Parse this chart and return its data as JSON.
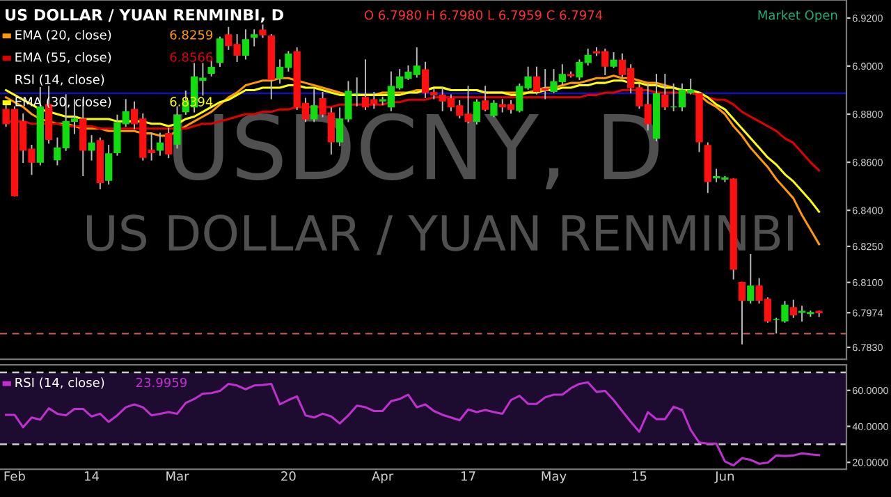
{
  "chart_data": [
    {
      "type": "candlestick",
      "title": "US DOLLAR / YUAN RENMINBI, D",
      "subtitle": "O 6.7980 H 6.7980 L 6.7959 C 6.7974",
      "categories": [
        null,
        null,
        null,
        null,
        null,
        null,
        null,
        null,
        null,
        null,
        null,
        null,
        null,
        null,
        null,
        null,
        null,
        null,
        null,
        null,
        null,
        null,
        null,
        null,
        null,
        null,
        null,
        null,
        null,
        null,
        null,
        null,
        null,
        null,
        null,
        null,
        null,
        null,
        null,
        null,
        null,
        null,
        null,
        null,
        null,
        null,
        null,
        null,
        null,
        null,
        null,
        null,
        null,
        null,
        null,
        null,
        null,
        null,
        null,
        null,
        null,
        null,
        null,
        null,
        null,
        null,
        null,
        null,
        null,
        null,
        null,
        null,
        null,
        null,
        null,
        null,
        null,
        null,
        null,
        null,
        null,
        null,
        null,
        null,
        null,
        null,
        null,
        null,
        null,
        null,
        null,
        null,
        null,
        null,
        null,
        null
      ],
      "ohlc": [
        [
          6.882,
          6.884,
          6.875,
          6.876
        ],
        [
          6.882,
          6.883,
          6.846,
          6.846
        ],
        [
          6.877,
          6.88,
          6.86,
          6.865
        ],
        [
          6.8655,
          6.867,
          6.855,
          6.86
        ],
        [
          6.86,
          6.891,
          6.859,
          6.883
        ],
        [
          6.884,
          6.8915,
          6.868,
          6.8695
        ],
        [
          6.861,
          6.87,
          6.859,
          6.866
        ],
        [
          6.866,
          6.888,
          6.865,
          6.877
        ],
        [
          6.877,
          6.886,
          6.872,
          6.878
        ],
        [
          6.878,
          6.886,
          6.8545,
          6.865
        ],
        [
          6.865,
          6.871,
          6.861,
          6.868
        ],
        [
          6.869,
          6.87,
          6.849,
          6.8515
        ],
        [
          6.8525,
          6.867,
          6.851,
          6.8635
        ],
        [
          6.864,
          6.8795,
          6.863,
          6.8765
        ],
        [
          6.876,
          6.886,
          6.875,
          6.881
        ],
        [
          6.882,
          6.885,
          6.874,
          6.876
        ],
        [
          6.878,
          6.88,
          6.861,
          6.862
        ],
        [
          6.865,
          6.872,
          6.861,
          6.864
        ],
        [
          6.865,
          6.872,
          6.863,
          6.868
        ],
        [
          6.872,
          6.874,
          6.862,
          6.8635
        ],
        [
          6.8675,
          6.883,
          6.866,
          6.8795
        ],
        [
          6.881,
          6.8895,
          6.88,
          6.8855
        ],
        [
          6.883,
          6.901,
          6.881,
          6.8955
        ],
        [
          6.894,
          6.901,
          6.888,
          6.895
        ],
        [
          6.897,
          6.902,
          6.896,
          6.8995
        ],
        [
          6.9015,
          6.912,
          6.9,
          6.9113
        ],
        [
          6.913,
          6.916,
          6.907,
          6.9085
        ],
        [
          6.909,
          6.913,
          6.902,
          6.9045
        ],
        [
          6.9045,
          6.915,
          6.903,
          6.911
        ],
        [
          6.912,
          6.915,
          6.9085,
          6.913
        ],
        [
          6.915,
          6.917,
          6.912,
          6.913
        ],
        [
          6.9125,
          6.913,
          6.8865,
          6.8945
        ],
        [
          6.895,
          6.9025,
          6.893,
          6.8995
        ],
        [
          6.8995,
          6.906,
          6.898,
          6.905
        ],
        [
          6.906,
          6.9075,
          6.882,
          6.883
        ],
        [
          6.8845,
          6.8865,
          6.877,
          6.878
        ],
        [
          6.878,
          6.8905,
          6.877,
          6.8835
        ],
        [
          6.8865,
          6.889,
          6.879,
          6.88
        ],
        [
          6.8805,
          6.8825,
          6.8635,
          6.8685
        ],
        [
          6.8685,
          6.8825,
          6.867,
          6.878
        ],
        [
          6.878,
          6.8935,
          6.877,
          6.8895
        ],
        [
          6.8885,
          6.895,
          6.8835,
          6.8885
        ],
        [
          6.887,
          6.9025,
          6.882,
          6.883
        ],
        [
          6.886,
          6.889,
          6.8825,
          6.8845
        ],
        [
          6.8855,
          6.887,
          6.884,
          6.886
        ],
        [
          6.883,
          6.8975,
          6.8815,
          6.8915
        ],
        [
          6.891,
          6.8985,
          6.8905,
          6.8955
        ],
        [
          6.895,
          6.9,
          6.8945,
          6.8975
        ],
        [
          6.8965,
          6.9075,
          6.8955,
          6.9
        ],
        [
          6.8985,
          6.9015,
          6.887,
          6.889
        ],
        [
          6.889,
          6.8905,
          6.8865,
          6.888
        ],
        [
          6.888,
          6.891,
          6.8815,
          6.8855
        ],
        [
          6.8865,
          6.888,
          6.8815,
          6.883
        ],
        [
          6.8835,
          6.8855,
          6.8785,
          6.8795
        ],
        [
          6.88,
          6.8915,
          6.8765,
          6.877
        ],
        [
          6.877,
          6.886,
          6.876,
          6.885
        ],
        [
          6.8855,
          6.8915,
          6.8815,
          6.882
        ],
        [
          6.8795,
          6.8855,
          6.879,
          6.8845
        ],
        [
          6.884,
          6.886,
          6.881,
          6.883
        ],
        [
          6.884,
          6.8855,
          6.8805,
          6.882
        ],
        [
          6.8815,
          6.8925,
          6.881,
          6.8915
        ],
        [
          6.891,
          6.8995,
          6.8905,
          6.8955
        ],
        [
          6.8955,
          6.8995,
          6.8885,
          6.8895
        ],
        [
          6.8905,
          6.8985,
          6.8865,
          6.89
        ],
        [
          6.8895,
          6.8985,
          6.889,
          6.8935
        ],
        [
          6.8935,
          6.9005,
          6.8925,
          6.8965
        ],
        [
          6.8965,
          6.8975,
          6.8955,
          6.896
        ],
        [
          6.8955,
          6.9025,
          6.8945,
          6.9015
        ],
        [
          6.9015,
          6.907,
          6.9005,
          6.9045
        ],
        [
          6.906,
          6.9075,
          6.9045,
          6.9055
        ],
        [
          6.906,
          6.907,
          6.8965,
          6.9
        ],
        [
          6.9,
          6.9055,
          6.8995,
          6.9025
        ],
        [
          6.9025,
          6.905,
          6.8955,
          6.8965
        ],
        [
          6.899,
          6.9005,
          6.889,
          6.891
        ],
        [
          6.891,
          6.8925,
          6.8825,
          6.8835
        ],
        [
          6.884,
          6.8925,
          6.8735,
          6.876
        ],
        [
          6.87,
          6.8965,
          6.869,
          6.8885
        ],
        [
          6.888,
          6.8965,
          6.882,
          6.883
        ],
        [
          6.883,
          6.8925,
          6.8815,
          6.883
        ],
        [
          6.883,
          6.8925,
          6.8815,
          6.89
        ],
        [
          6.889,
          6.8945,
          6.8885,
          6.89
        ],
        [
          6.8885,
          6.889,
          6.8645,
          6.8685
        ],
        [
          6.867,
          6.868,
          6.8475,
          6.852
        ],
        [
          6.8535,
          6.857,
          6.852,
          6.854
        ],
        [
          6.853,
          6.854,
          6.852,
          6.8535
        ],
        [
          6.853,
          6.853,
          6.8115,
          6.8155
        ],
        [
          6.81,
          6.81,
          6.7845,
          6.8025
        ],
        [
          6.8025,
          6.8215,
          6.8015,
          6.8085
        ],
        [
          6.8085,
          6.8115,
          6.8015,
          6.8025
        ],
        [
          6.803,
          6.8035,
          6.7935,
          6.794
        ],
        [
          6.7945,
          6.795,
          6.789,
          6.7945
        ],
        [
          6.794,
          6.802,
          6.7935,
          6.8005
        ],
        [
          6.7995,
          6.8025,
          6.7955,
          6.7965
        ],
        [
          6.7975,
          6.8,
          6.794,
          6.798
        ],
        [
          6.797,
          6.798,
          6.796,
          6.7975
        ],
        [
          6.798,
          6.798,
          6.7959,
          6.7974
        ]
      ],
      "series": [
        {
          "type": "line",
          "name": "EMA (20, close)",
          "color": "#ff9900",
          "values": [
            6.887,
            6.885,
            6.883,
            6.88,
            6.878,
            6.877,
            6.876,
            6.876,
            6.875,
            6.874,
            6.874,
            6.874,
            6.873,
            6.873,
            6.873,
            6.873,
            6.872,
            6.872,
            6.871,
            6.871,
            6.873,
            6.875,
            6.877,
            6.879,
            6.881,
            6.884,
            6.887,
            6.889,
            6.892,
            6.893,
            6.894,
            6.894,
            6.895,
            6.895,
            6.894,
            6.893,
            6.892,
            6.891,
            6.89,
            6.889,
            6.888,
            6.888,
            6.888,
            6.888,
            6.889,
            6.889,
            6.889,
            6.889,
            6.89,
            6.89,
            6.891,
            6.891,
            6.89,
            6.89,
            6.89,
            6.89,
            6.889,
            6.889,
            6.889,
            6.889,
            6.889,
            6.889,
            6.89,
            6.891,
            6.891,
            6.892,
            6.893,
            6.893,
            6.894,
            6.895,
            6.895,
            6.896,
            6.895,
            6.895,
            6.894,
            6.893,
            6.893,
            6.892,
            6.891,
            6.89,
            6.889,
            6.888,
            6.885,
            6.883,
            6.88,
            6.875,
            6.871,
            6.866,
            6.862,
            6.858,
            6.853,
            6.849,
            6.845,
            6.838,
            6.832,
            6.8259
          ]
        },
        {
          "type": "line",
          "name": "EMA (55, close)",
          "color": "#e00000",
          "values": [
            6.877,
            6.877,
            6.877,
            6.876,
            6.876,
            6.876,
            6.876,
            6.875,
            6.875,
            6.875,
            6.875,
            6.874,
            6.874,
            6.874,
            6.874,
            6.874,
            6.874,
            6.874,
            6.874,
            6.874,
            6.874,
            6.874,
            6.875,
            6.876,
            6.876,
            6.877,
            6.878,
            6.879,
            6.88,
            6.88,
            6.881,
            6.881,
            6.882,
            6.882,
            6.883,
            6.883,
            6.883,
            6.883,
            6.883,
            6.884,
            6.884,
            6.884,
            6.884,
            6.884,
            6.884,
            6.885,
            6.885,
            6.886,
            6.886,
            6.886,
            6.887,
            6.887,
            6.887,
            6.887,
            6.887,
            6.887,
            6.887,
            6.887,
            6.887,
            6.887,
            6.887,
            6.887,
            6.887,
            6.887,
            6.887,
            6.887,
            6.887,
            6.887,
            6.888,
            6.888,
            6.889,
            6.889,
            6.89,
            6.89,
            6.89,
            6.89,
            6.889,
            6.889,
            6.889,
            6.889,
            6.889,
            6.888,
            6.887,
            6.886,
            6.886,
            6.884,
            6.881,
            6.879,
            6.877,
            6.875,
            6.873,
            6.87,
            6.868,
            6.864,
            6.86,
            6.8566
          ]
        },
        {
          "type": "line",
          "name": "EMA (30, close)",
          "color": "#ffff00",
          "values": [
            6.89,
            6.888,
            6.886,
            6.884,
            6.882,
            6.881,
            6.88,
            6.879,
            6.879,
            6.878,
            6.878,
            6.878,
            6.878,
            6.877,
            6.877,
            6.877,
            6.877,
            6.876,
            6.876,
            6.875,
            6.876,
            6.878,
            6.879,
            6.881,
            6.883,
            6.885,
            6.886,
            6.888,
            6.89,
            6.89,
            6.891,
            6.891,
            6.891,
            6.892,
            6.892,
            6.891,
            6.891,
            6.89,
            6.889,
            6.888,
            6.888,
            6.888,
            6.888,
            6.888,
            6.888,
            6.888,
            6.888,
            6.889,
            6.889,
            6.89,
            6.891,
            6.891,
            6.89,
            6.89,
            6.89,
            6.89,
            6.889,
            6.889,
            6.889,
            6.888,
            6.888,
            6.889,
            6.889,
            6.89,
            6.89,
            6.891,
            6.891,
            6.892,
            6.892,
            6.893,
            6.893,
            6.894,
            6.894,
            6.893,
            6.893,
            6.892,
            6.892,
            6.891,
            6.891,
            6.89,
            6.89,
            6.889,
            6.887,
            6.884,
            6.882,
            6.878,
            6.874,
            6.87,
            6.866,
            6.862,
            6.859,
            6.855,
            6.852,
            6.848,
            6.844,
            6.8394
          ]
        }
      ],
      "ylim": [
        6.778,
        6.9275
      ],
      "yticks": [
        {
          "value": 6.92,
          "label": "6.9200"
        },
        {
          "value": 6.9,
          "label": "6.9000"
        },
        {
          "value": 6.88,
          "label": "6.8800"
        },
        {
          "value": 6.86,
          "label": "6.8600"
        },
        {
          "value": 6.84,
          "label": "6.8400"
        },
        {
          "value": 6.825,
          "label": "6.8250"
        },
        {
          "value": 6.81,
          "label": "6.8100"
        },
        {
          "value": 6.7974,
          "label": "6.7974"
        },
        {
          "value": 6.783,
          "label": "6.7830"
        }
      ],
      "ref_lines": [
        {
          "axis": "y",
          "value": 6.8887,
          "label": null,
          "color": "#1010c0",
          "line_style": "solid"
        },
        {
          "axis": "y",
          "value": 6.7887,
          "label": null,
          "color": "#b05050",
          "line_style": "dashed"
        }
      ],
      "annotations": [
        "RSI (14, close)",
        "Market Open",
        "USDCNY, D",
        "US DOLLAR / YUAN RENMINBI",
        "6.8259",
        "6.8566",
        "6.8394"
      ],
      "legend": "top left",
      "tick_labels": "y"
    },
    {
      "type": "line",
      "categories": [
        null,
        "Feb",
        null,
        null,
        null,
        null,
        null,
        null,
        null,
        null,
        "14",
        null,
        null,
        null,
        null,
        null,
        null,
        null,
        null,
        null,
        "Mar",
        null,
        null,
        null,
        null,
        null,
        null,
        null,
        null,
        null,
        null,
        null,
        null,
        "20",
        null,
        null,
        null,
        null,
        null,
        null,
        null,
        null,
        null,
        null,
        "Apr",
        null,
        null,
        null,
        null,
        null,
        null,
        null,
        null,
        null,
        "17",
        null,
        null,
        null,
        null,
        null,
        null,
        null,
        null,
        null,
        "May",
        null,
        null,
        null,
        null,
        null,
        null,
        null,
        null,
        null,
        "15",
        null,
        null,
        null,
        null,
        null,
        null,
        null,
        null,
        null,
        "Jun",
        null,
        null,
        null,
        null,
        null,
        null,
        null,
        null,
        null,
        null,
        null
      ],
      "series": [
        {
          "name": "RSI (14, close)",
          "color": "#c030d0",
          "values": [
            46.4,
            46.4,
            39.5,
            44.9,
            43.7,
            50,
            47,
            46.1,
            49.7,
            49.7,
            45.5,
            47,
            42.5,
            46.1,
            50.6,
            52.2,
            50.6,
            46.1,
            47,
            47.9,
            47,
            53,
            55.2,
            58.2,
            58.5,
            59.7,
            63.6,
            62.7,
            60.6,
            62.7,
            63,
            63.6,
            52.2,
            54.6,
            56.7,
            46.1,
            44.9,
            47,
            45.5,
            41.6,
            46.1,
            51.5,
            50.6,
            48.5,
            48.5,
            54,
            55.2,
            57.6,
            50.6,
            52.2,
            48.5,
            46.4,
            44.9,
            43.4,
            49.4,
            47.9,
            49.1,
            47.9,
            47,
            54.6,
            57,
            52.5,
            52.5,
            56.1,
            57.6,
            57.6,
            61.2,
            63.6,
            64.5,
            59.1,
            59.7,
            54.6,
            48.5,
            42.5,
            37,
            47.9,
            44,
            44,
            50.9,
            49.1,
            38,
            31,
            30.4,
            30.4,
            20.5,
            18.3,
            22.3,
            21.4,
            19.2,
            19.8,
            23.8,
            23.5,
            23.8,
            25,
            24.4,
            23.9959
          ]
        }
      ],
      "ylim": [
        16.2,
        74.2
      ],
      "yticks": [
        {
          "value": 20,
          "label": "20.0000"
        },
        {
          "value": 40,
          "label": "40.0000"
        },
        {
          "value": 60,
          "label": "60.0000"
        }
      ],
      "ref_lines": [
        {
          "axis": "y",
          "value": 70,
          "label": null,
          "color": "#cccccc",
          "line_style": "dashed"
        },
        {
          "axis": "y",
          "value": 30,
          "label": null,
          "color": "#cccccc",
          "line_style": "dashed"
        }
      ],
      "bands": [
        {
          "axis": "y",
          "from": 30,
          "to": 70,
          "label": null,
          "color": "#1e0b30"
        }
      ],
      "annotations": [
        "23.9959"
      ],
      "legend": "top left"
    }
  ]
}
